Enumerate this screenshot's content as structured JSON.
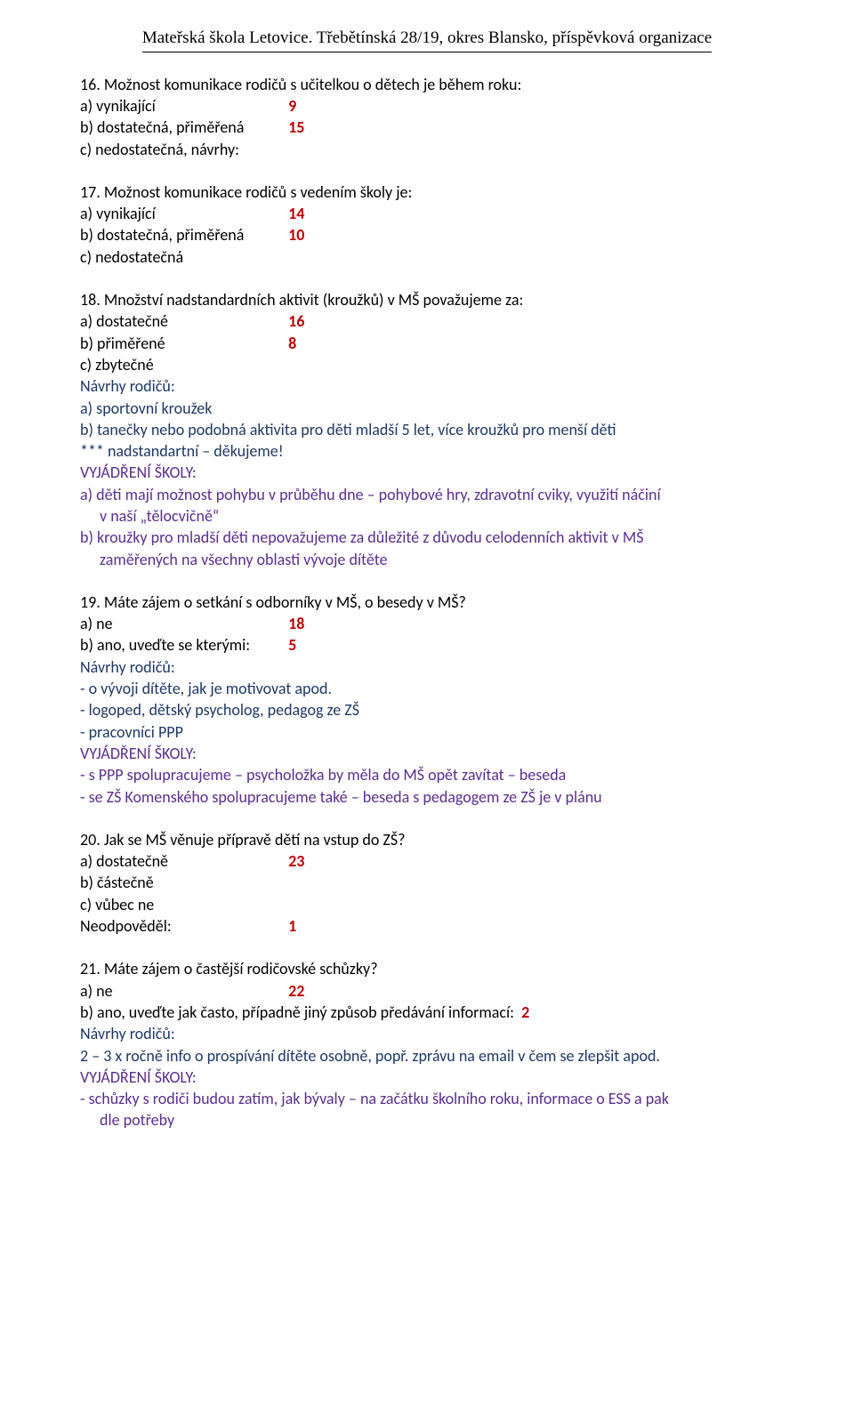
{
  "header": {
    "title": "Mateřská škola Letovice. Třebětínská 28/19, okres Blansko, příspěvková organizace"
  },
  "colors": {
    "text": "#000000",
    "red": "#c00000",
    "navyBlue": "#1f3864",
    "purple": "#5b2e8e",
    "background": "#ffffff"
  },
  "typography": {
    "header_font": "Times New Roman",
    "body_font": "Calibri",
    "body_fontsize": 18,
    "header_fontsize": 19
  },
  "q16": {
    "title": "16. Možnost komunikace rodičů s učitelkou o dětech je během roku:",
    "a_label": "a)  vynikající",
    "a_num": "9",
    "b_label": "b)  dostatečná, přiměřená",
    "b_num": "15",
    "c_label": "c)  nedostatečná, návrhy:"
  },
  "q17": {
    "title": "17. Možnost komunikace rodičů s vedením školy je:",
    "a_label": "a)  vynikající",
    "a_num": "14",
    "b_label": "b)  dostatečná, přiměřená",
    "b_num": "10",
    "c_label": "c)  nedostatečná"
  },
  "q18": {
    "title": "18. Množství nadstandardních aktivit (kroužků) v MŠ považujeme za:",
    "a_label": "a)  dostatečné",
    "a_num": "16",
    "b_label": "b)  přiměřené",
    "b_num": "8",
    "c_label": "c)  zbytečné",
    "navrhy_label": "Návrhy rodičů:",
    "navrhy_a": "a) sportovní kroužek",
    "navrhy_b": "b) tanečky nebo podobná aktivita pro děti mladší 5 let, více kroužků pro menší děti",
    "stars": "*** nadstandartní – děkujeme!",
    "vyj_label": "VYJÁDŘENÍ ŠKOLY:",
    "vyj_a1": "a) děti mají možnost pohybu v průběhu dne – pohybové hry, zdravotní cviky, využití náčiní",
    "vyj_a2": "v naší „tělocvičně“",
    "vyj_b1": "b) kroužky pro mladší děti nepovažujeme za důležité z důvodu celodenních aktivit v MŠ",
    "vyj_b2": "zaměřených na všechny oblasti vývoje dítěte"
  },
  "q19": {
    "title": "19. Máte zájem o setkání s odborníky  v MŠ, o besedy v MŠ?",
    "a_label": "a)  ne",
    "a_num": "18",
    "b_label": "b)  ano, uveďte se kterými:",
    "b_num": "5",
    "navrhy_label": "Návrhy rodičů:",
    "navrhy_1": "- o vývoji dítěte, jak je motivovat apod.",
    "navrhy_2": "- logoped, dětský psycholog, pedagog ze ZŠ",
    "navrhy_3": "- pracovníci PPP",
    "vyj_label": "VYJÁDŘENÍ ŠKOLY:",
    "vyj_1": "- s PPP spolupracujeme – psycholožka by měla do MŠ opět zavítat – beseda",
    "vyj_2": "- se ZŠ Komenského spolupracujeme také – beseda s pedagogem ze ZŠ je v plánu"
  },
  "q20": {
    "title": "20. Jak se MŠ věnuje přípravě dětí na vstup do ZŠ?",
    "a_label": "a)  dostatečně",
    "a_num": "23",
    "b_label": "b)  částečně",
    "c_label": "c)  vůbec ne",
    "neod_label": "Neodpověděl:",
    "neod_num": "1"
  },
  "q21": {
    "title": "21. Máte zájem o častější rodičovské schůzky?",
    "a_label": "a)  ne",
    "a_num": "22",
    "b_label": "b)  ano, uveďte jak často, případně jiný způsob předávání informací:",
    "b_num": "2",
    "navrhy_label": "Návrhy rodičů:",
    "navrhy_1": "2 – 3 x ročně info o prospívání dítěte osobně, popř.  zprávu na email v čem se zlepšit apod.",
    "vyj_label": "VYJÁDŘENÍ ŠKOLY:",
    "vyj_1": "- schůzky s rodiči budou zatím, jak bývaly – na začátku školního roku, informace o ESS a pak",
    "vyj_2": "dle potřeby"
  }
}
